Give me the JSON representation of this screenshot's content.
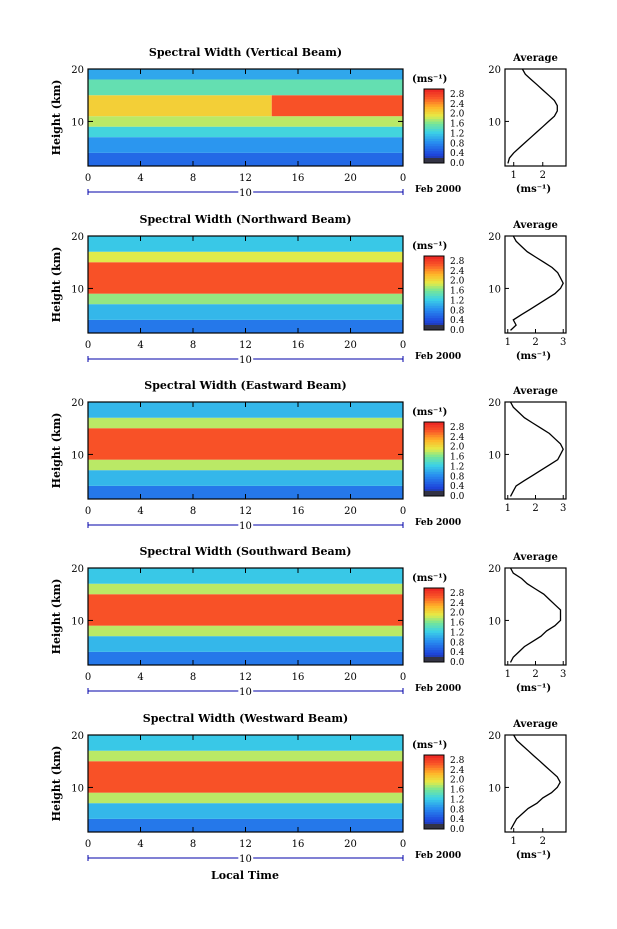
{
  "chart_data": [
    {
      "type": "heatmap",
      "title": "Spectral Width (Vertical Beam)",
      "ylabel": "Height (km)",
      "yticks": [
        "20",
        "10"
      ],
      "xticks": [
        "0",
        "4",
        "8",
        "12",
        "16",
        "20",
        "0"
      ],
      "xlim": [
        0,
        24
      ],
      "ylim": [
        1.5,
        20
      ],
      "date_day": "10",
      "date_month_year": "Feb 2000",
      "colorbar": {
        "unit": "(ms⁻¹)",
        "ticks": [
          "2.8",
          "2.4",
          "2.0",
          "1.6",
          "1.2",
          "0.8",
          "0.4",
          "0.0"
        ],
        "range": [
          0,
          3.0
        ]
      },
      "regions": [
        {
          "hmin": 1.5,
          "hmax": 4,
          "t0": 0,
          "t1": 24,
          "value": 0.6
        },
        {
          "hmin": 4,
          "hmax": 7,
          "t0": 0,
          "t1": 24,
          "value": 0.9
        },
        {
          "hmin": 7,
          "hmax": 9,
          "t0": 0,
          "t1": 24,
          "value": 1.3
        },
        {
          "hmin": 9,
          "hmax": 11,
          "t0": 0,
          "t1": 24,
          "value": 1.8
        },
        {
          "hmin": 11,
          "hmax": 15,
          "t0": 0,
          "t1": 14,
          "value": 2.1
        },
        {
          "hmin": 11,
          "hmax": 15,
          "t0": 14,
          "t1": 24,
          "value": 2.7
        },
        {
          "hmin": 15,
          "hmax": 18,
          "t0": 0,
          "t1": 24,
          "value": 1.5
        },
        {
          "hmin": 18,
          "hmax": 20,
          "t0": 0,
          "t1": 24,
          "value": 1.0
        }
      ],
      "average": {
        "title": "Average",
        "xlabel": "(ms⁻¹)",
        "xticks": [
          "1",
          "2"
        ],
        "xlim": [
          0.7,
          2.8
        ],
        "yticks": [
          "20",
          "10"
        ],
        "profile": [
          {
            "h": 2,
            "v": 0.8
          },
          {
            "h": 3,
            "v": 0.85
          },
          {
            "h": 4,
            "v": 1.0
          },
          {
            "h": 5,
            "v": 1.2
          },
          {
            "h": 6,
            "v": 1.4
          },
          {
            "h": 7,
            "v": 1.6
          },
          {
            "h": 8,
            "v": 1.8
          },
          {
            "h": 9,
            "v": 2.0
          },
          {
            "h": 10,
            "v": 2.2
          },
          {
            "h": 11,
            "v": 2.4
          },
          {
            "h": 12,
            "v": 2.5
          },
          {
            "h": 13,
            "v": 2.5
          },
          {
            "h": 14,
            "v": 2.4
          },
          {
            "h": 15,
            "v": 2.2
          },
          {
            "h": 16,
            "v": 2.0
          },
          {
            "h": 17,
            "v": 1.8
          },
          {
            "h": 18,
            "v": 1.6
          },
          {
            "h": 19,
            "v": 1.4
          },
          {
            "h": 20,
            "v": 1.3
          }
        ]
      }
    },
    {
      "type": "heatmap",
      "title": "Spectral Width (Northward Beam)",
      "ylabel": "Height (km)",
      "yticks": [
        "20",
        "10"
      ],
      "xticks": [
        "0",
        "4",
        "8",
        "12",
        "16",
        "20",
        "0"
      ],
      "xlim": [
        0,
        24
      ],
      "ylim": [
        1.5,
        20
      ],
      "date_day": "10",
      "date_month_year": "Feb 2000",
      "colorbar": {
        "unit": "(ms⁻¹)",
        "ticks": [
          "2.8",
          "2.4",
          "2.0",
          "1.6",
          "1.2",
          "0.8",
          "0.4",
          "0.0"
        ],
        "range": [
          0,
          3.0
        ]
      },
      "regions": [
        {
          "hmin": 1.5,
          "hmax": 4,
          "t0": 0,
          "t1": 24,
          "value": 0.7
        },
        {
          "hmin": 4,
          "hmax": 7,
          "t0": 0,
          "t1": 24,
          "value": 1.1
        },
        {
          "hmin": 7,
          "hmax": 9,
          "t0": 0,
          "t1": 24,
          "value": 1.7
        },
        {
          "hmin": 9,
          "hmax": 15,
          "t0": 0,
          "t1": 24,
          "value": 2.7
        },
        {
          "hmin": 15,
          "hmax": 17,
          "t0": 0,
          "t1": 24,
          "value": 1.9
        },
        {
          "hmin": 17,
          "hmax": 20,
          "t0": 0,
          "t1": 24,
          "value": 1.2
        }
      ],
      "average": {
        "title": "Average",
        "xlabel": "(ms⁻¹)",
        "xticks": [
          "1",
          "2",
          "3"
        ],
        "xlim": [
          0.9,
          3.1
        ],
        "yticks": [
          "20",
          "10"
        ],
        "profile": [
          {
            "h": 2,
            "v": 1.1
          },
          {
            "h": 3,
            "v": 1.3
          },
          {
            "h": 4,
            "v": 1.2
          },
          {
            "h": 5,
            "v": 1.5
          },
          {
            "h": 6,
            "v": 1.8
          },
          {
            "h": 7,
            "v": 2.1
          },
          {
            "h": 8,
            "v": 2.4
          },
          {
            "h": 9,
            "v": 2.7
          },
          {
            "h": 10,
            "v": 2.9
          },
          {
            "h": 11,
            "v": 3.0
          },
          {
            "h": 12,
            "v": 2.9
          },
          {
            "h": 13,
            "v": 2.8
          },
          {
            "h": 14,
            "v": 2.6
          },
          {
            "h": 15,
            "v": 2.3
          },
          {
            "h": 16,
            "v": 2.0
          },
          {
            "h": 17,
            "v": 1.7
          },
          {
            "h": 18,
            "v": 1.5
          },
          {
            "h": 19,
            "v": 1.3
          },
          {
            "h": 20,
            "v": 1.2
          }
        ]
      }
    },
    {
      "type": "heatmap",
      "title": "Spectral Width (Eastward Beam)",
      "ylabel": "Height (km)",
      "yticks": [
        "20",
        "10"
      ],
      "xticks": [
        "0",
        "4",
        "8",
        "12",
        "16",
        "20",
        "0"
      ],
      "xlim": [
        0,
        24
      ],
      "ylim": [
        1.5,
        20
      ],
      "date_day": "10",
      "date_month_year": "Feb 2000",
      "colorbar": {
        "unit": "(ms⁻¹)",
        "ticks": [
          "2.8",
          "2.4",
          "2.0",
          "1.6",
          "1.2",
          "0.8",
          "0.4",
          "0.0"
        ],
        "range": [
          0,
          3.0
        ]
      },
      "regions": [
        {
          "hmin": 1.5,
          "hmax": 4,
          "t0": 0,
          "t1": 24,
          "value": 0.7
        },
        {
          "hmin": 4,
          "hmax": 7,
          "t0": 0,
          "t1": 24,
          "value": 1.1
        },
        {
          "hmin": 7,
          "hmax": 9,
          "t0": 0,
          "t1": 24,
          "value": 1.8
        },
        {
          "hmin": 9,
          "hmax": 15,
          "t0": 0,
          "t1": 24,
          "value": 2.7
        },
        {
          "hmin": 15,
          "hmax": 17,
          "t0": 0,
          "t1": 24,
          "value": 1.8
        },
        {
          "hmin": 17,
          "hmax": 20,
          "t0": 0,
          "t1": 24,
          "value": 1.1
        }
      ],
      "average": {
        "title": "Average",
        "xlabel": "",
        "xticks": [
          "1",
          "2",
          "3"
        ],
        "xlim": [
          0.9,
          3.1
        ],
        "yticks": [
          "20",
          "10"
        ],
        "profile": [
          {
            "h": 2,
            "v": 1.1
          },
          {
            "h": 3,
            "v": 1.2
          },
          {
            "h": 4,
            "v": 1.3
          },
          {
            "h": 5,
            "v": 1.6
          },
          {
            "h": 6,
            "v": 1.9
          },
          {
            "h": 7,
            "v": 2.2
          },
          {
            "h": 8,
            "v": 2.5
          },
          {
            "h": 9,
            "v": 2.8
          },
          {
            "h": 10,
            "v": 2.9
          },
          {
            "h": 11,
            "v": 3.0
          },
          {
            "h": 12,
            "v": 2.9
          },
          {
            "h": 13,
            "v": 2.7
          },
          {
            "h": 14,
            "v": 2.5
          },
          {
            "h": 15,
            "v": 2.2
          },
          {
            "h": 16,
            "v": 1.9
          },
          {
            "h": 17,
            "v": 1.6
          },
          {
            "h": 18,
            "v": 1.4
          },
          {
            "h": 19,
            "v": 1.2
          },
          {
            "h": 20,
            "v": 1.1
          }
        ]
      }
    },
    {
      "type": "heatmap",
      "title": "Spectral Width (Southward Beam)",
      "ylabel": "Height (km)",
      "yticks": [
        "20",
        "10"
      ],
      "xticks": [
        "0",
        "4",
        "8",
        "12",
        "16",
        "20",
        "0"
      ],
      "xlim": [
        0,
        24
      ],
      "ylim": [
        1.5,
        20
      ],
      "date_day": "10",
      "date_month_year": "Feb 2000",
      "colorbar": {
        "unit": "(ms⁻¹)",
        "ticks": [
          "2.8",
          "2.4",
          "2.0",
          "1.6",
          "1.2",
          "0.8",
          "0.4",
          "0.0"
        ],
        "range": [
          0,
          3.0
        ]
      },
      "regions": [
        {
          "hmin": 1.5,
          "hmax": 4,
          "t0": 0,
          "t1": 24,
          "value": 0.7
        },
        {
          "hmin": 4,
          "hmax": 7,
          "t0": 0,
          "t1": 24,
          "value": 1.1
        },
        {
          "hmin": 7,
          "hmax": 9,
          "t0": 0,
          "t1": 24,
          "value": 1.8
        },
        {
          "hmin": 9,
          "hmax": 15,
          "t0": 0,
          "t1": 24,
          "value": 2.7
        },
        {
          "hmin": 15,
          "hmax": 17,
          "t0": 0,
          "t1": 24,
          "value": 1.8
        },
        {
          "hmin": 17,
          "hmax": 20,
          "t0": 0,
          "t1": 24,
          "value": 1.2
        }
      ],
      "average": {
        "title": "Average",
        "xlabel": "(ms⁻¹)",
        "xticks": [
          "1",
          "2",
          "3"
        ],
        "xlim": [
          0.9,
          3.1
        ],
        "yticks": [
          "20",
          "10"
        ],
        "profile": [
          {
            "h": 2,
            "v": 1.1
          },
          {
            "h": 3,
            "v": 1.2
          },
          {
            "h": 4,
            "v": 1.4
          },
          {
            "h": 5,
            "v": 1.6
          },
          {
            "h": 6,
            "v": 1.9
          },
          {
            "h": 7,
            "v": 2.2
          },
          {
            "h": 8,
            "v": 2.4
          },
          {
            "h": 9,
            "v": 2.7
          },
          {
            "h": 10,
            "v": 2.9
          },
          {
            "h": 11,
            "v": 2.9
          },
          {
            "h": 12,
            "v": 2.9
          },
          {
            "h": 13,
            "v": 2.7
          },
          {
            "h": 14,
            "v": 2.5
          },
          {
            "h": 15,
            "v": 2.3
          },
          {
            "h": 16,
            "v": 2.0
          },
          {
            "h": 17,
            "v": 1.7
          },
          {
            "h": 18,
            "v": 1.5
          },
          {
            "h": 19,
            "v": 1.2
          },
          {
            "h": 20,
            "v": 1.1
          }
        ]
      }
    },
    {
      "type": "heatmap",
      "title": "Spectral Width (Westward Beam)",
      "ylabel": "Height (km)",
      "yticks": [
        "20",
        "10"
      ],
      "xticks": [
        "0",
        "4",
        "8",
        "12",
        "16",
        "20",
        "0"
      ],
      "xlim": [
        0,
        24
      ],
      "ylim": [
        1.5,
        20
      ],
      "date_day": "10",
      "date_month_year": "Feb 2000",
      "colorbar": {
        "unit": "(ms⁻¹)",
        "ticks": [
          "2.8",
          "2.4",
          "2.0",
          "1.6",
          "1.2",
          "0.8",
          "0.4",
          "0.0"
        ],
        "range": [
          0,
          3.0
        ]
      },
      "regions": [
        {
          "hmin": 1.5,
          "hmax": 4,
          "t0": 0,
          "t1": 24,
          "value": 0.7
        },
        {
          "hmin": 4,
          "hmax": 7,
          "t0": 0,
          "t1": 24,
          "value": 1.1
        },
        {
          "hmin": 7,
          "hmax": 9,
          "t0": 0,
          "t1": 24,
          "value": 1.8
        },
        {
          "hmin": 9,
          "hmax": 15,
          "t0": 0,
          "t1": 24,
          "value": 2.7
        },
        {
          "hmin": 15,
          "hmax": 17,
          "t0": 0,
          "t1": 24,
          "value": 1.8
        },
        {
          "hmin": 17,
          "hmax": 20,
          "t0": 0,
          "t1": 24,
          "value": 1.2
        }
      ],
      "average": {
        "title": "Average",
        "xlabel": "(ms⁻¹)",
        "xticks": [
          "1",
          "2"
        ],
        "xlim": [
          0.7,
          2.8
        ],
        "yticks": [
          "20",
          "10"
        ],
        "profile": [
          {
            "h": 2,
            "v": 0.9
          },
          {
            "h": 3,
            "v": 1.0
          },
          {
            "h": 4,
            "v": 1.1
          },
          {
            "h": 5,
            "v": 1.3
          },
          {
            "h": 6,
            "v": 1.5
          },
          {
            "h": 7,
            "v": 1.8
          },
          {
            "h": 8,
            "v": 2.0
          },
          {
            "h": 9,
            "v": 2.3
          },
          {
            "h": 10,
            "v": 2.5
          },
          {
            "h": 11,
            "v": 2.6
          },
          {
            "h": 12,
            "v": 2.5
          },
          {
            "h": 13,
            "v": 2.3
          },
          {
            "h": 14,
            "v": 2.1
          },
          {
            "h": 15,
            "v": 1.9
          },
          {
            "h": 16,
            "v": 1.7
          },
          {
            "h": 17,
            "v": 1.5
          },
          {
            "h": 18,
            "v": 1.3
          },
          {
            "h": 19,
            "v": 1.1
          },
          {
            "h": 20,
            "v": 1.0
          }
        ]
      }
    }
  ],
  "footer": {
    "xlabel": "Local Time"
  }
}
